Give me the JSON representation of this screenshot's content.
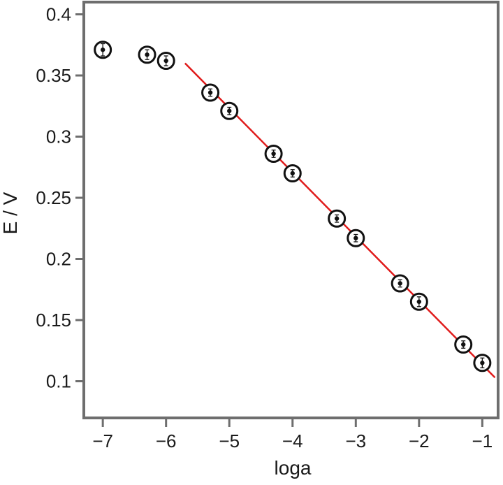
{
  "chart_data": {
    "type": "scatter",
    "xlabel": "loga",
    "ylabel": "E / V",
    "xlim": [
      -7.3,
      -0.75
    ],
    "ylim": [
      0.07,
      0.41
    ],
    "xticks": [
      -7,
      -6,
      -5,
      -4,
      -3,
      -2,
      -1
    ],
    "xtick_labels": [
      "−7",
      "−6",
      "−5",
      "−4",
      "−3",
      "−2",
      "−1"
    ],
    "yticks": [
      0.1,
      0.15,
      0.2,
      0.25,
      0.3,
      0.35,
      0.4
    ],
    "ytick_labels": [
      "0.1",
      "0.15",
      "0.2",
      "0.25",
      "0.3",
      "0.35",
      "0.4"
    ],
    "grid": false,
    "series": [
      {
        "type": "scatter",
        "marker": "circled-dot-with-error-bar",
        "color": "#111111",
        "points": [
          {
            "x": -7.0,
            "y": 0.371,
            "err": 0.005
          },
          {
            "x": -6.3,
            "y": 0.367,
            "err": 0.004
          },
          {
            "x": -6.0,
            "y": 0.362,
            "err": 0.004
          },
          {
            "x": -5.3,
            "y": 0.336,
            "err": 0.003
          },
          {
            "x": -5.0,
            "y": 0.321,
            "err": 0.003
          },
          {
            "x": -4.3,
            "y": 0.286,
            "err": 0.003
          },
          {
            "x": -4.0,
            "y": 0.27,
            "err": 0.003
          },
          {
            "x": -3.3,
            "y": 0.233,
            "err": 0.003
          },
          {
            "x": -3.0,
            "y": 0.217,
            "err": 0.003
          },
          {
            "x": -2.3,
            "y": 0.18,
            "err": 0.003
          },
          {
            "x": -2.0,
            "y": 0.165,
            "err": 0.004
          },
          {
            "x": -1.3,
            "y": 0.13,
            "err": 0.003
          },
          {
            "x": -1.0,
            "y": 0.115,
            "err": 0.004
          }
        ]
      },
      {
        "type": "line",
        "color": "#e01b1b",
        "points": [
          {
            "x": -5.7,
            "y": 0.36
          },
          {
            "x": -0.8,
            "y": 0.103
          }
        ]
      }
    ]
  }
}
